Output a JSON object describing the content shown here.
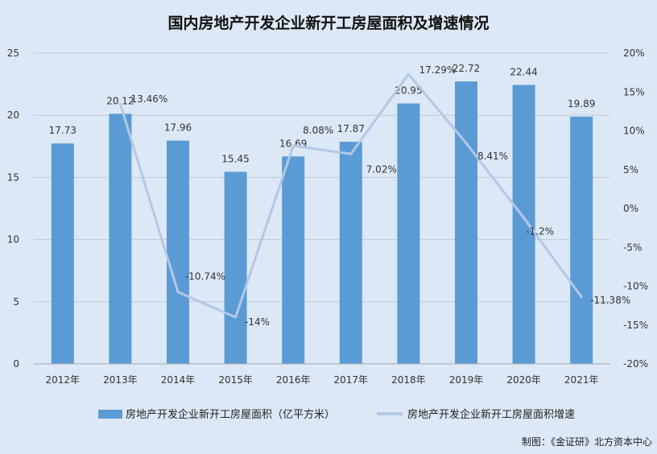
{
  "title": "国内房地产开发企业新开工房屋面积及增速情况",
  "source": "制图：《金证研》北方资本中心",
  "chart_data": {
    "type": "bar",
    "categories": [
      "2012年",
      "2013年",
      "2014年",
      "2015年",
      "2016年",
      "2017年",
      "2018年",
      "2019年",
      "2020年",
      "2021年"
    ],
    "series": [
      {
        "name": "房地产开发企业新开工房屋面积（亿平方米）",
        "type": "bar",
        "axis": "left",
        "values": [
          17.73,
          20.12,
          17.96,
          15.45,
          16.69,
          17.87,
          20.95,
          22.72,
          22.44,
          19.89
        ],
        "labels": [
          "17.73",
          "20.12",
          "17.96",
          "15.45",
          "16.69",
          "17.87",
          "20.95",
          "22.72",
          "22.44",
          "19.89"
        ],
        "color": "#5b9bd5"
      },
      {
        "name": "房地产开发企业新开工房屋面积增速",
        "type": "line",
        "axis": "right",
        "values": [
          null,
          13.46,
          -10.74,
          -14,
          8.08,
          7.02,
          17.29,
          8.41,
          -1.2,
          -11.38
        ],
        "labels": [
          "",
          "13.46%",
          "-10.74%",
          "-14%",
          "8.08%",
          "7.02%",
          "17.29%",
          "8.41%",
          "-1.2%",
          "-11.38%"
        ],
        "color": "#b4c7e7"
      }
    ],
    "y_left": {
      "min": 0,
      "max": 25,
      "ticks": [
        "0",
        "5",
        "10",
        "15",
        "20",
        "25"
      ]
    },
    "y_right": {
      "min": -20,
      "max": 20,
      "ticks": [
        "-20%",
        "-15%",
        "-10%",
        "-5%",
        "0%",
        "5%",
        "10%",
        "15%",
        "20%"
      ]
    },
    "grid": true,
    "legend_position": "bottom"
  }
}
